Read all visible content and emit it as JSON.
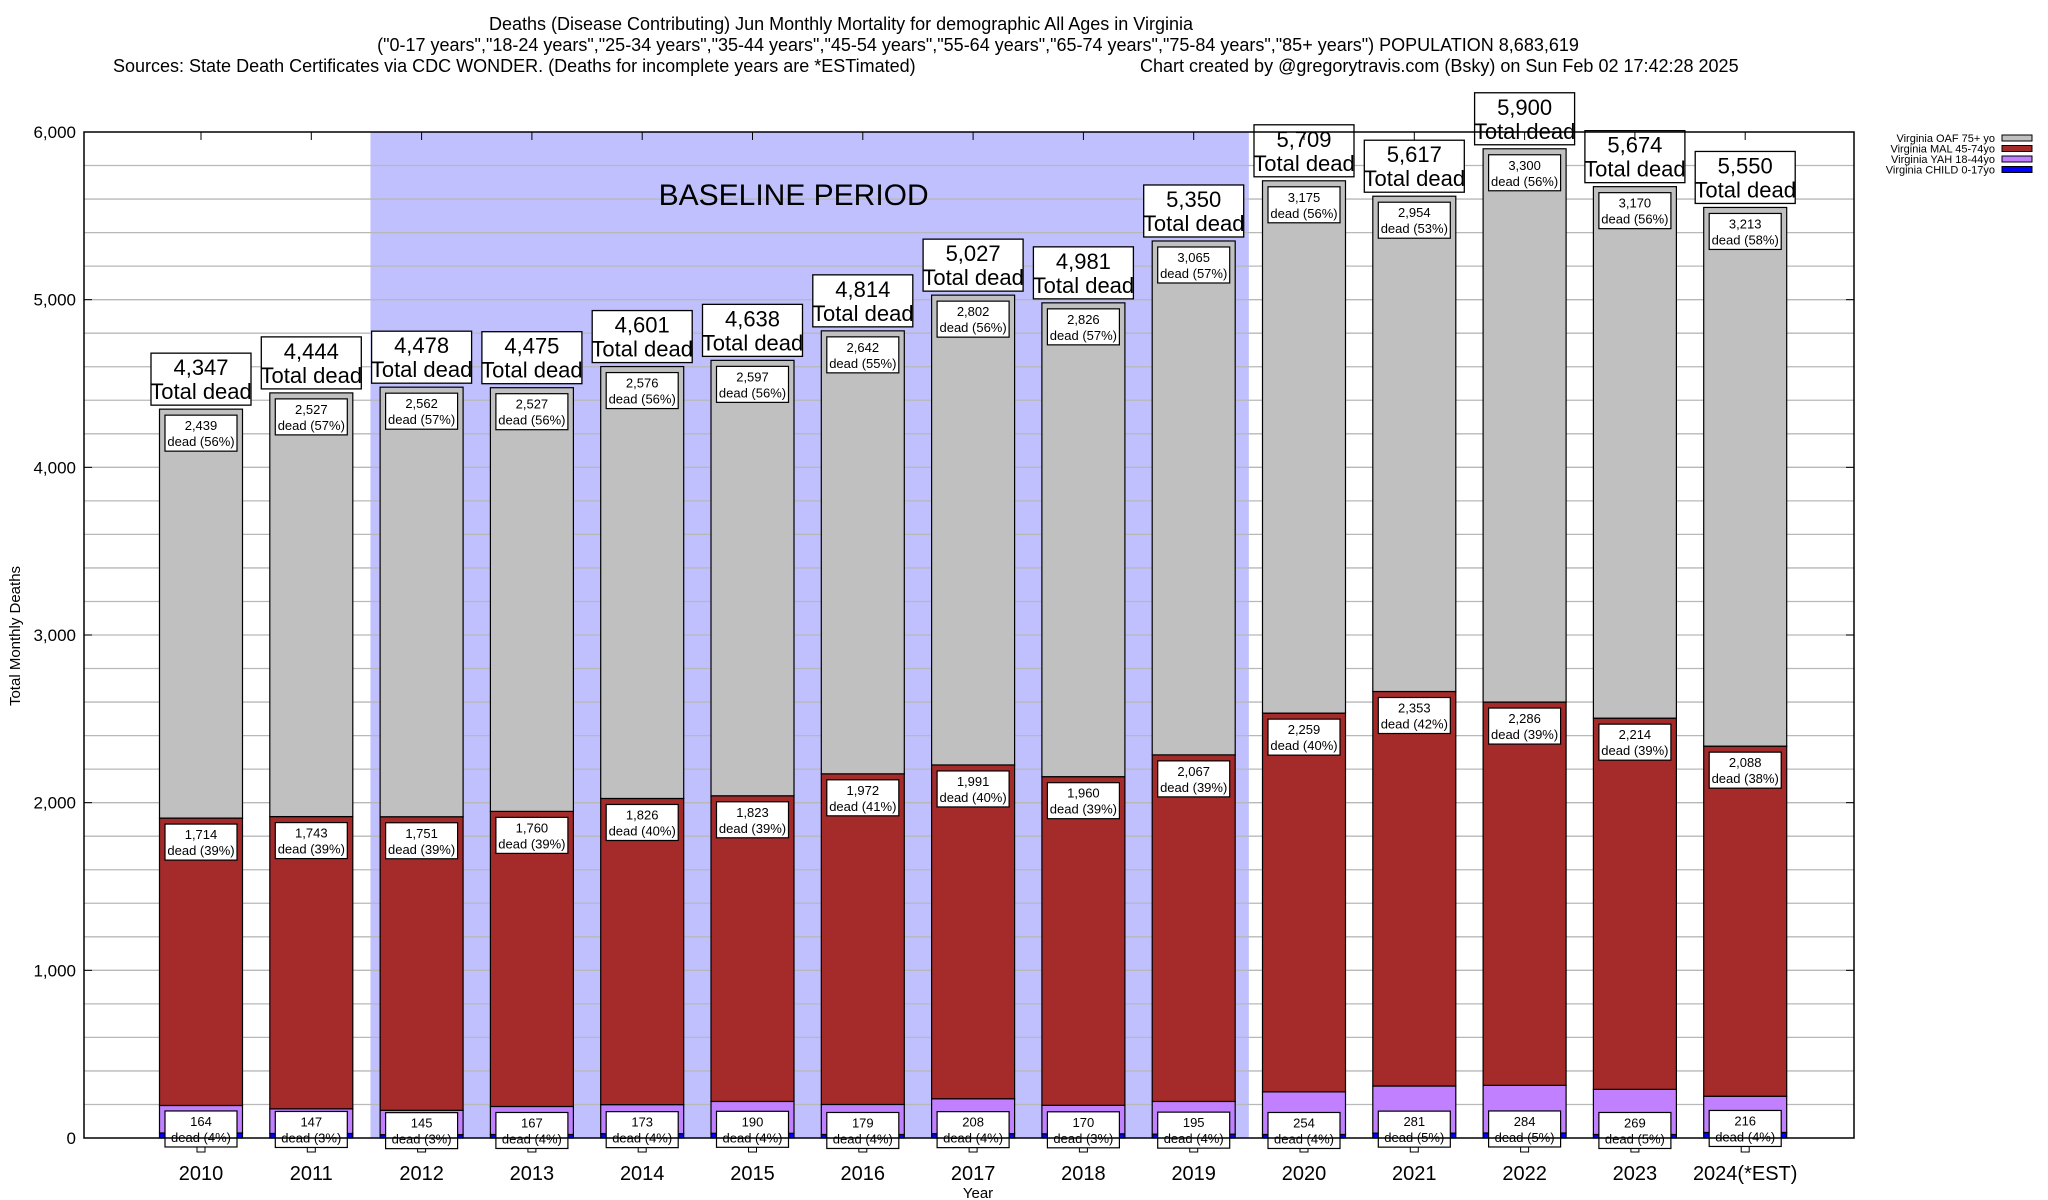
{
  "chart_data": {
    "type": "bar",
    "stacked": true,
    "title_lines": [
      "Deaths (Disease Contributing) Jun Monthly Mortality for demographic All Ages in Virginia",
      "(\"0-17 years\",\"18-24 years\",\"25-34 years\",\"35-44 years\",\"45-54 years\",\"55-64 years\",\"65-74 years\",\"75-84 years\",\"85+ years\") POPULATION 8,683,619",
      "Sources: State Death Certificates via CDC WONDER. (Deaths for incomplete years are *ESTimated)"
    ],
    "credit": "Chart created by @gregorytravis.com (Bsky) on Sun Feb 02 17:42:28 2025",
    "xlabel": "Year",
    "ylabel": "Total Monthly Deaths",
    "ylim": [
      0,
      6000
    ],
    "yticks": [
      "0",
      "1,000",
      "2,000",
      "3,000",
      "4,000",
      "5,000",
      "6,000"
    ],
    "grid": true,
    "legend_position": "top-right",
    "annotation": "BASELINE PERIOD",
    "baseline_range": [
      "2012",
      "2019"
    ],
    "total_suffix": "Total dead",
    "dead_word": "dead",
    "categories": [
      "2010",
      "2011",
      "2012",
      "2013",
      "2014",
      "2015",
      "2016",
      "2017",
      "2018",
      "2019",
      "2020",
      "2021",
      "2022",
      "2023",
      "2024(*EST)"
    ],
    "totals": [
      4347,
      4444,
      4478,
      4475,
      4601,
      4638,
      4814,
      5027,
      4981,
      5350,
      5709,
      5617,
      5900,
      5674,
      5550
    ],
    "totals_labels": [
      "4,347",
      "4,444",
      "4,478",
      "4,475",
      "4,601",
      "4,638",
      "4,814",
      "5,027",
      "4,981",
      "5,350",
      "5,709",
      "5,617",
      "5,900",
      "5,674",
      "5,550"
    ],
    "series": [
      {
        "name": "Virginia CHILD 0-17yo",
        "color": "#0000ff",
        "values": [
          30,
          27,
          20,
          21,
          26,
          28,
          21,
          26,
          25,
          23,
          21,
          29,
          30,
          21,
          33
        ]
      },
      {
        "name": "Virginia YAH 18-44yo",
        "color": "#c080ff",
        "values": [
          164,
          147,
          145,
          167,
          173,
          190,
          179,
          208,
          170,
          195,
          254,
          281,
          284,
          269,
          216
        ],
        "labels": [
          "164",
          "147",
          "145",
          "167",
          "173",
          "190",
          "179",
          "208",
          "170",
          "195",
          "254",
          "281",
          "284",
          "269",
          "216"
        ],
        "pct": [
          "(4%)",
          "(3%)",
          "(3%)",
          "(4%)",
          "(4%)",
          "(4%)",
          "(4%)",
          "(4%)",
          "(3%)",
          "(4%)",
          "(4%)",
          "(5%)",
          "(5%)",
          "(5%)",
          "(4%)"
        ]
      },
      {
        "name": "Virginia MAL 45-74yo",
        "color": "#a52a2a",
        "values": [
          1714,
          1743,
          1751,
          1760,
          1826,
          1823,
          1972,
          1991,
          1960,
          2067,
          2259,
          2353,
          2286,
          2214,
          2088
        ],
        "labels": [
          "1,714",
          "1,743",
          "1,751",
          "1,760",
          "1,826",
          "1,823",
          "1,972",
          "1,991",
          "1,960",
          "2,067",
          "2,259",
          "2,353",
          "2,286",
          "2,214",
          "2,088"
        ],
        "pct": [
          "(39%)",
          "(39%)",
          "(39%)",
          "(39%)",
          "(40%)",
          "(39%)",
          "(41%)",
          "(40%)",
          "(39%)",
          "(39%)",
          "(40%)",
          "(42%)",
          "(39%)",
          "(39%)",
          "(38%)"
        ]
      },
      {
        "name": "Virginia OAF 75+ yo",
        "color": "#c0c0c0",
        "values": [
          2439,
          2527,
          2562,
          2527,
          2576,
          2597,
          2642,
          2802,
          2826,
          3065,
          3175,
          2954,
          3300,
          3170,
          3213
        ],
        "labels": [
          "2,439",
          "2,527",
          "2,562",
          "2,527",
          "2,576",
          "2,597",
          "2,642",
          "2,802",
          "2,826",
          "3,065",
          "3,175",
          "2,954",
          "3,300",
          "3,170",
          "3,213"
        ],
        "pct": [
          "(56%)",
          "(57%)",
          "(57%)",
          "(56%)",
          "(56%)",
          "(56%)",
          "(55%)",
          "(56%)",
          "(57%)",
          "(57%)",
          "(56%)",
          "(53%)",
          "(56%)",
          "(56%)",
          "(58%)"
        ]
      }
    ],
    "baseline_color": "#c0c0ff"
  }
}
